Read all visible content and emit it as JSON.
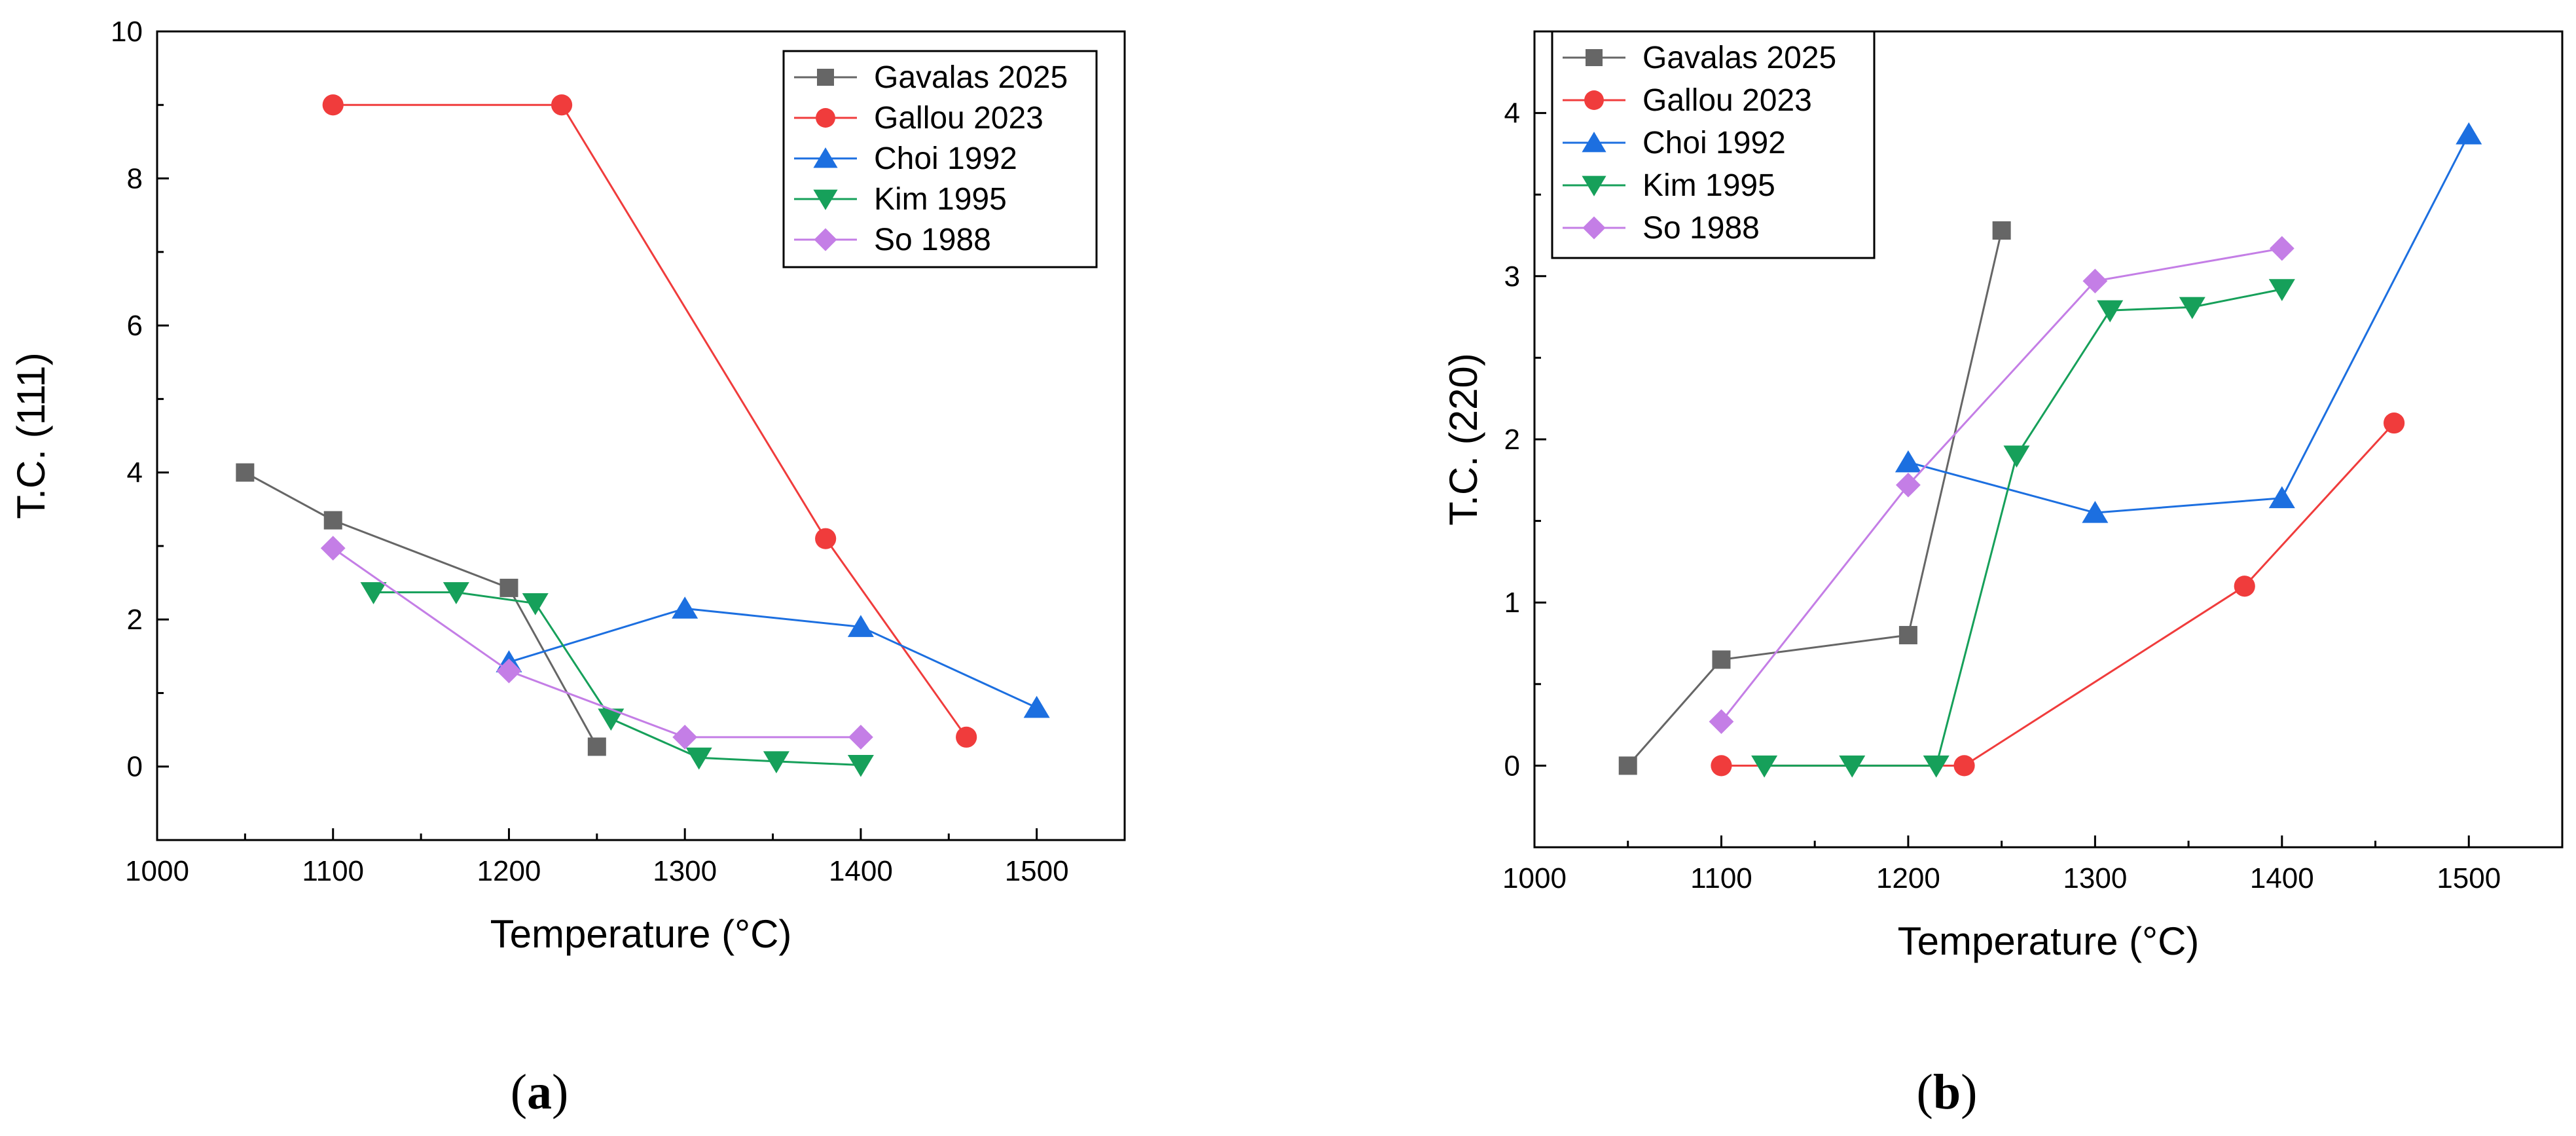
{
  "chart_data": [
    {
      "type": "line",
      "panel": "a",
      "caption_open": "(",
      "caption_letter": "a",
      "caption_close": ")",
      "xlabel": "Temperature (°C)",
      "ylabel": "T.C. (111)",
      "xlim": [
        1000,
        1550
      ],
      "ylim": [
        -1,
        10
      ],
      "xticks": [
        1000,
        1100,
        1200,
        1300,
        1400,
        1500
      ],
      "yticks": [
        0,
        2,
        4,
        6,
        8,
        10
      ],
      "legend_position": "top-right",
      "series": [
        {
          "name": "Gavalas 2025",
          "color": "#666666",
          "marker": "square",
          "x": [
            1050,
            1100,
            1200,
            1250
          ],
          "y": [
            4.0,
            3.35,
            2.43,
            0.27
          ]
        },
        {
          "name": "Gallou 2023",
          "color": "#f03c3c",
          "marker": "circle",
          "x": [
            1100,
            1230,
            1380,
            1460
          ],
          "y": [
            9.0,
            9.0,
            3.1,
            0.4
          ]
        },
        {
          "name": "Choi 1992",
          "color": "#1c6fe0",
          "marker": "triangle-up",
          "x": [
            1200,
            1300,
            1400,
            1500
          ],
          "y": [
            1.42,
            2.15,
            1.9,
            0.8
          ]
        },
        {
          "name": "Kim 1995",
          "color": "#16a05a",
          "marker": "triangle-down",
          "x": [
            1123,
            1170,
            1215,
            1258,
            1308,
            1352,
            1400
          ],
          "y": [
            2.37,
            2.37,
            2.22,
            0.65,
            0.12,
            0.07,
            0.02
          ]
        },
        {
          "name": "So 1988",
          "color": "#c47ee6",
          "marker": "diamond",
          "x": [
            1100,
            1200,
            1300,
            1400
          ],
          "y": [
            2.97,
            1.3,
            0.4,
            0.4
          ]
        }
      ]
    },
    {
      "type": "line",
      "panel": "b",
      "caption_open": "(",
      "caption_letter": "b",
      "caption_close": ")",
      "xlabel": "Temperature (°C)",
      "ylabel": "T.C. (220)",
      "xlim": [
        1000,
        1550
      ],
      "ylim": [
        -0.5,
        4.5
      ],
      "xticks": [
        1000,
        1100,
        1200,
        1300,
        1400,
        1500
      ],
      "yticks": [
        0,
        1,
        2,
        3,
        4
      ],
      "legend_position": "top-left",
      "series": [
        {
          "name": "Gavalas 2025",
          "color": "#666666",
          "marker": "square",
          "x": [
            1050,
            1100,
            1200,
            1250
          ],
          "y": [
            0.0,
            0.65,
            0.8,
            3.28
          ]
        },
        {
          "name": "Gallou 2023",
          "color": "#f03c3c",
          "marker": "circle",
          "x": [
            1100,
            1230,
            1380,
            1460
          ],
          "y": [
            0.0,
            0.0,
            1.1,
            2.1
          ]
        },
        {
          "name": "Choi 1992",
          "color": "#1c6fe0",
          "marker": "triangle-up",
          "x": [
            1200,
            1300,
            1400,
            1500
          ],
          "y": [
            1.86,
            1.55,
            1.64,
            3.87
          ]
        },
        {
          "name": "Kim 1995",
          "color": "#16a05a",
          "marker": "triangle-down",
          "x": [
            1123,
            1170,
            1215,
            1258,
            1308,
            1352,
            1400
          ],
          "y": [
            0.0,
            0.0,
            0.0,
            1.9,
            2.79,
            2.81,
            2.92
          ]
        },
        {
          "name": "So 1988",
          "color": "#c47ee6",
          "marker": "diamond",
          "x": [
            1100,
            1200,
            1300,
            1400
          ],
          "y": [
            0.27,
            1.72,
            2.97,
            3.17
          ]
        }
      ]
    }
  ]
}
